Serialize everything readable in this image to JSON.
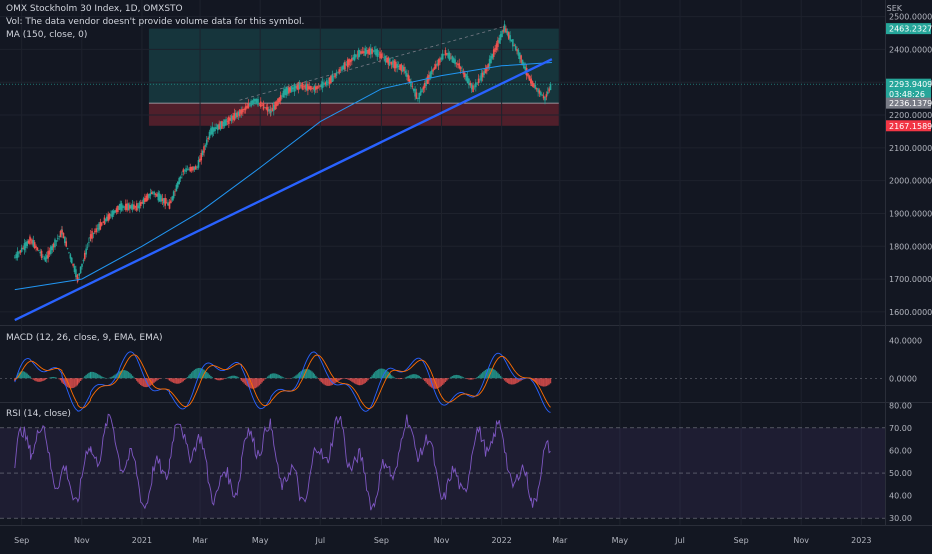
{
  "header": {
    "title": "OMX Stockholm 30 Index, 1D, OMXSTO",
    "vol_note": "Vol: The data vendor doesn't provide volume data for this symbol.",
    "ma_label": "MA (150, close, 0)",
    "currency": "SEK"
  },
  "price_axis": {
    "ticks": [
      "2500.0000",
      "2400.0000",
      "2300.0000",
      "2200.0000",
      "2100.0000",
      "2000.0000",
      "1900.0000",
      "1800.0000",
      "1700.0000",
      "1600.0000"
    ],
    "tick_values": [
      2500,
      2400,
      2300,
      2200,
      2100,
      2000,
      1900,
      1800,
      1700,
      1600
    ],
    "badges": [
      {
        "label": "2463.2327",
        "value": 2463.2327,
        "color": "#26a69a"
      },
      {
        "label": "2293.9409",
        "value": 2293.9409,
        "color": "#26a69a"
      },
      {
        "label": "03:48:26",
        "value": 2281,
        "color": "#26a69a"
      },
      {
        "label": "2236.1379",
        "value": 2236.1379,
        "color": "#787b86"
      },
      {
        "label": "2167.1589",
        "value": 2167.1589,
        "color": "#f23645"
      }
    ]
  },
  "macd": {
    "label": "MACD (12, 26, close, 9, EMA, EMA)",
    "ticks": [
      "40.0000",
      "0.0000"
    ],
    "tick_values": [
      40,
      0
    ]
  },
  "rsi": {
    "label": "RSI (14, close)",
    "ticks": [
      "80.00",
      "70.00",
      "60.00",
      "50.00",
      "40.00",
      "30.00"
    ],
    "tick_values": [
      80,
      70,
      60,
      50,
      40,
      30
    ]
  },
  "time_axis": {
    "labels": [
      "Sep",
      "Nov",
      "2021",
      "Mar",
      "May",
      "Jul",
      "Sep",
      "Nov",
      "2022",
      "Mar",
      "May",
      "Jul",
      "Sep",
      "Nov",
      "2023"
    ]
  },
  "chart_data": {
    "type": "line",
    "symbol": "OMX Stockholm 30 Index",
    "interval": "1D",
    "price": {
      "ylim": [
        1560,
        2520
      ],
      "ohlc_close_approx": [
        [
          "2020-08-25",
          1765
        ],
        [
          "2020-09-10",
          1820
        ],
        [
          "2020-09-25",
          1760
        ],
        [
          "2020-10-12",
          1845
        ],
        [
          "2020-10-28",
          1700
        ],
        [
          "2020-11-10",
          1830
        ],
        [
          "2020-11-25",
          1880
        ],
        [
          "2020-12-10",
          1920
        ],
        [
          "2020-12-28",
          1920
        ],
        [
          "2021-01-12",
          1965
        ],
        [
          "2021-01-29",
          1925
        ],
        [
          "2021-02-12",
          2030
        ],
        [
          "2021-02-26",
          2040
        ],
        [
          "2021-03-12",
          2150
        ],
        [
          "2021-03-26",
          2175
        ],
        [
          "2021-04-12",
          2210
        ],
        [
          "2021-04-26",
          2245
        ],
        [
          "2021-05-12",
          2210
        ],
        [
          "2021-05-26",
          2270
        ],
        [
          "2021-06-10",
          2290
        ],
        [
          "2021-06-25",
          2280
        ],
        [
          "2021-07-09",
          2300
        ],
        [
          "2021-07-26",
          2350
        ],
        [
          "2021-08-10",
          2390
        ],
        [
          "2021-08-25",
          2395
        ],
        [
          "2021-09-10",
          2360
        ],
        [
          "2021-09-24",
          2340
        ],
        [
          "2021-10-08",
          2250
        ],
        [
          "2021-10-22",
          2330
        ],
        [
          "2021-11-05",
          2390
        ],
        [
          "2021-11-19",
          2350
        ],
        [
          "2021-12-03",
          2280
        ],
        [
          "2021-12-17",
          2340
        ],
        [
          "2022-01-04",
          2465
        ],
        [
          "2022-01-18",
          2390
        ],
        [
          "2022-01-31",
          2300
        ],
        [
          "2022-02-14",
          2250
        ],
        [
          "2022-02-21",
          2294
        ]
      ],
      "ma150_approx": [
        [
          "2020-08-25",
          1668
        ],
        [
          "2020-11-01",
          1700
        ],
        [
          "2021-01-01",
          1800
        ],
        [
          "2021-03-01",
          1905
        ],
        [
          "2021-05-01",
          2040
        ],
        [
          "2021-07-01",
          2180
        ],
        [
          "2021-09-01",
          2280
        ],
        [
          "2021-11-01",
          2320
        ],
        [
          "2022-01-01",
          2350
        ],
        [
          "2022-02-21",
          2360
        ]
      ],
      "trendline": {
        "from": [
          "2020-08-25",
          1575
        ],
        "to": [
          "2022-02-21",
          2370
        ]
      },
      "long_position": {
        "entry": 2236.1379,
        "target": 2463.2327,
        "stop": 2167.1589,
        "start": "2021-03-10",
        "end": "2022-02-28"
      }
    },
    "macd": {
      "ylim": [
        -25,
        55
      ],
      "zero": 0
    },
    "rsi": {
      "ylim": [
        27,
        81
      ],
      "overbought": 70,
      "middle": 50,
      "oversold": 30
    }
  }
}
